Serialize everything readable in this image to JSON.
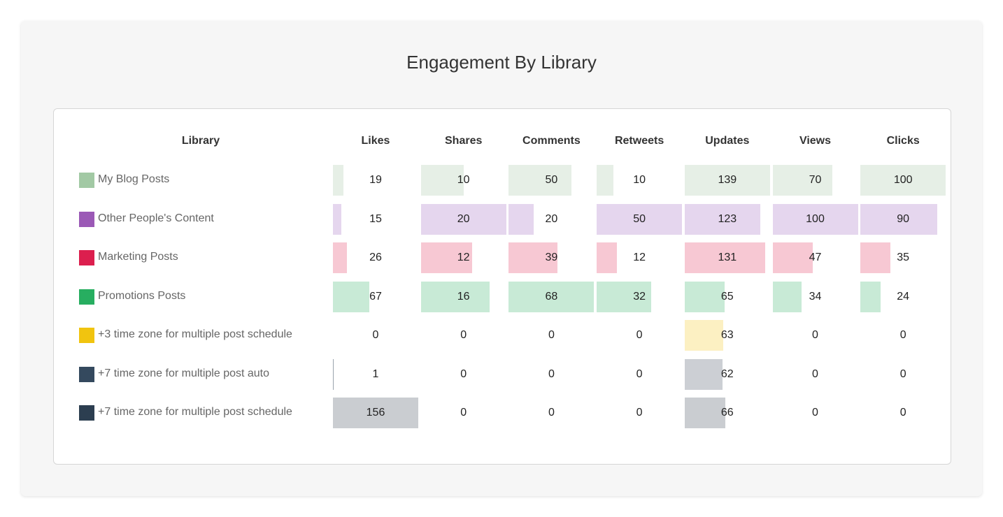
{
  "title": "Engagement By Library",
  "chart_data": {
    "type": "table",
    "title": "Engagement By Library",
    "row_header": "Library",
    "columns": [
      "Likes",
      "Shares",
      "Comments",
      "Retweets",
      "Updates",
      "Views",
      "Clicks"
    ],
    "rows": [
      {
        "name": "My Blog Posts",
        "color": "#a2c9a4",
        "bar_color": "#e6efe6",
        "values": [
          19,
          10,
          50,
          10,
          139,
          70,
          100
        ]
      },
      {
        "name": "Other People's Content",
        "color": "#9b59b6",
        "bar_color": "#e5d6ee",
        "values": [
          15,
          20,
          20,
          50,
          123,
          100,
          90
        ]
      },
      {
        "name": "Marketing Posts",
        "color": "#dc1f4e",
        "bar_color": "#f7c8d3",
        "values": [
          26,
          12,
          39,
          12,
          131,
          47,
          35
        ]
      },
      {
        "name": "Promotions Posts",
        "color": "#27ae60",
        "bar_color": "#c8ead6",
        "values": [
          67,
          16,
          68,
          32,
          65,
          34,
          24
        ]
      },
      {
        "name": "+3 time zone for multiple post schedule",
        "color": "#f1c40f",
        "bar_color": "#fcf0c2",
        "values": [
          0,
          0,
          0,
          0,
          63,
          0,
          0
        ]
      },
      {
        "name": "+7 time zone for multiple post auto",
        "color": "#34495e",
        "bar_color": "#cccfd4",
        "values": [
          1,
          0,
          0,
          0,
          62,
          0,
          0
        ]
      },
      {
        "name": "+7 time zone for multiple post schedule",
        "color": "#2c3e50",
        "bar_color": "#cacdd1",
        "values": [
          156,
          0,
          0,
          0,
          66,
          0,
          0
        ]
      }
    ]
  }
}
